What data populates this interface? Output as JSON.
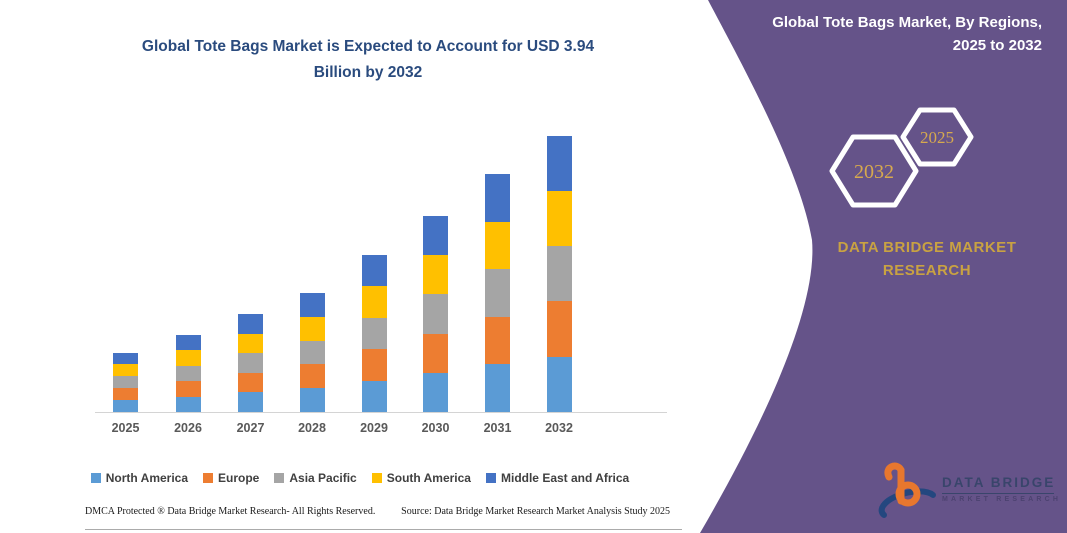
{
  "header": {
    "line1": "Global Tote Bags Market is Expected to Account for USD 3.94",
    "line2": "Billion by 2032"
  },
  "panel": {
    "heading_line1": "Global Tote Bags Market, By Regions,",
    "heading_line2": "2025 to 2032",
    "hexagons": [
      {
        "label": "2032"
      },
      {
        "label": "2025"
      }
    ],
    "brand_line1": "DATA BRIDGE MARKET",
    "brand_line2": "RESEARCH",
    "colors": {
      "panel_purple": "#655389",
      "brand_gold": "#C9A242",
      "hexagon_year_gold": "#D7A94E",
      "title_navy": "#2A4B7E"
    }
  },
  "logo": {
    "title": "DATA BRIDGE",
    "subtitle": "MARKET RESEARCH",
    "colors": {
      "orange": "#E8772E",
      "navy": "#24477F"
    }
  },
  "footer": {
    "left": "DMCA Protected ® Data Bridge Market Research-  All Rights Reserved.",
    "right": "Source: Data Bridge Market Research  Market Analysis Study 2025"
  },
  "chart_data": {
    "type": "bar",
    "stacked": true,
    "title": "Global Tote Bags Market is Expected to Account for USD 3.94 Billion by 2032",
    "unit": "USD Billion",
    "categories": [
      "2025",
      "2026",
      "2027",
      "2028",
      "2029",
      "2030",
      "2031",
      "2032"
    ],
    "series": [
      {
        "name": "North America",
        "color": "#5B9BD5",
        "values": [
          0.17,
          0.22,
          0.28,
          0.34,
          0.45,
          0.56,
          0.68,
          0.79
        ]
      },
      {
        "name": "Europe",
        "color": "#ED7D31",
        "values": [
          0.17,
          0.22,
          0.28,
          0.34,
          0.45,
          0.56,
          0.68,
          0.79
        ]
      },
      {
        "name": "Asia Pacific",
        "color": "#A5A5A5",
        "values": [
          0.17,
          0.22,
          0.28,
          0.34,
          0.45,
          0.56,
          0.68,
          0.79
        ]
      },
      {
        "name": "South America",
        "color": "#FFC000",
        "values": [
          0.17,
          0.22,
          0.28,
          0.34,
          0.45,
          0.56,
          0.68,
          0.79
        ]
      },
      {
        "name": "Middle East and Africa",
        "color": "#4472C4",
        "values": [
          0.17,
          0.22,
          0.28,
          0.34,
          0.45,
          0.56,
          0.68,
          0.79
        ]
      }
    ],
    "totals_by_year": [
      0.83,
      1.11,
      1.4,
      1.69,
      2.25,
      2.81,
      3.38,
      3.94
    ],
    "total_2032": 3.94,
    "ylim": [
      0,
      4.2
    ],
    "grid": false,
    "y_axis_shown": false,
    "legend_position": "bottom"
  }
}
